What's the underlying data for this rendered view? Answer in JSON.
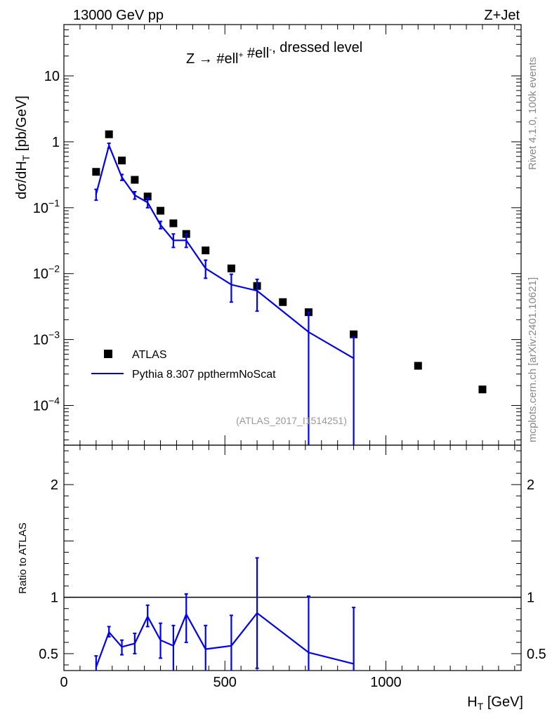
{
  "header": {
    "left": "13000 GeV pp",
    "right": "Z+Jet"
  },
  "side_labels": {
    "rivet": "Rivet 4.1.0,  100k events",
    "mcplots": "mcplots.cern.ch [arXiv:2401.10621]"
  },
  "chart_data": [
    {
      "type": "scatter",
      "panel": "main",
      "title": "Z → #ell+ #ell-, dressed level",
      "ylabel": "dσ/dH_T [pb/GeV]",
      "yscale": "log",
      "xlim": [
        0,
        1420
      ],
      "ylim": [
        2.5e-05,
        60
      ],
      "yticks": [
        0.0001,
        0.001,
        0.01,
        0.1,
        1,
        10
      ],
      "ytick_labels": [
        "10^-4",
        "10^-3",
        "10^-2",
        "10^-1",
        "1",
        "10"
      ],
      "watermark": "(ATLAS_2017_I1514251)",
      "legend": [
        {
          "label": "ATLAS",
          "marker": "square",
          "color": "#000000"
        },
        {
          "label": "Pythia 8.307 ppthermNoScat",
          "marker": "line",
          "color": "#0000ee"
        }
      ],
      "series": [
        {
          "name": "ATLAS",
          "x": [
            100,
            140,
            180,
            220,
            260,
            300,
            340,
            380,
            440,
            520,
            600,
            680,
            760,
            900,
            1100,
            1300
          ],
          "y": [
            0.35,
            1.3,
            0.52,
            0.265,
            0.148,
            0.09,
            0.058,
            0.04,
            0.0225,
            0.012,
            0.0065,
            0.0037,
            0.0026,
            0.0012,
            0.0004,
            0.000175
          ]
        },
        {
          "name": "Pythia 8.307 ppthermNoScat",
          "x": [
            100,
            140,
            180,
            220,
            260,
            300,
            340,
            380,
            440,
            520,
            600,
            760,
            900
          ],
          "y": [
            0.16,
            0.88,
            0.29,
            0.155,
            0.12,
            0.055,
            0.032,
            0.032,
            0.012,
            0.0068,
            0.0055,
            0.0013,
            0.00052
          ],
          "yerr_low": [
            0.13,
            0.8,
            0.26,
            0.135,
            0.1,
            0.048,
            0.025,
            0.025,
            0.0085,
            0.0037,
            0.0027,
            1e-06,
            1e-06
          ],
          "yerr_high": [
            0.19,
            0.95,
            0.32,
            0.175,
            0.14,
            0.062,
            0.04,
            0.04,
            0.016,
            0.0098,
            0.0082,
            0.0026,
            0.0011
          ]
        }
      ]
    },
    {
      "type": "line",
      "panel": "ratio",
      "ylabel": "Ratio to ATLAS",
      "xlabel": "H_T [GeV]",
      "xlim": [
        0,
        1420
      ],
      "ylim": [
        0.35,
        2.35
      ],
      "reference_line": 1,
      "xticks": [
        0,
        500,
        1000
      ],
      "xtick_labels": [
        "0",
        "500",
        "1000"
      ],
      "yticks": [
        0.5,
        1,
        2
      ],
      "ytick_labels": [
        "0.5",
        "1",
        "2"
      ],
      "series": [
        {
          "name": "Pythia 8.307 ppthermNoScat",
          "x": [
            100,
            140,
            180,
            220,
            260,
            300,
            340,
            380,
            440,
            520,
            600,
            760,
            900
          ],
          "y": [
            0.38,
            0.69,
            0.56,
            0.59,
            0.83,
            0.62,
            0.57,
            0.85,
            0.54,
            0.57,
            0.86,
            0.51,
            0.41
          ],
          "yerr_low": [
            0.32,
            0.65,
            0.49,
            0.5,
            0.74,
            0.46,
            0.33,
            0.6,
            0.33,
            0.3,
            0.37,
            0.2,
            0.2
          ],
          "yerr_high": [
            0.48,
            0.74,
            0.62,
            0.68,
            0.93,
            0.77,
            0.75,
            1.03,
            0.75,
            0.84,
            1.35,
            1.01,
            0.91
          ]
        }
      ]
    }
  ]
}
